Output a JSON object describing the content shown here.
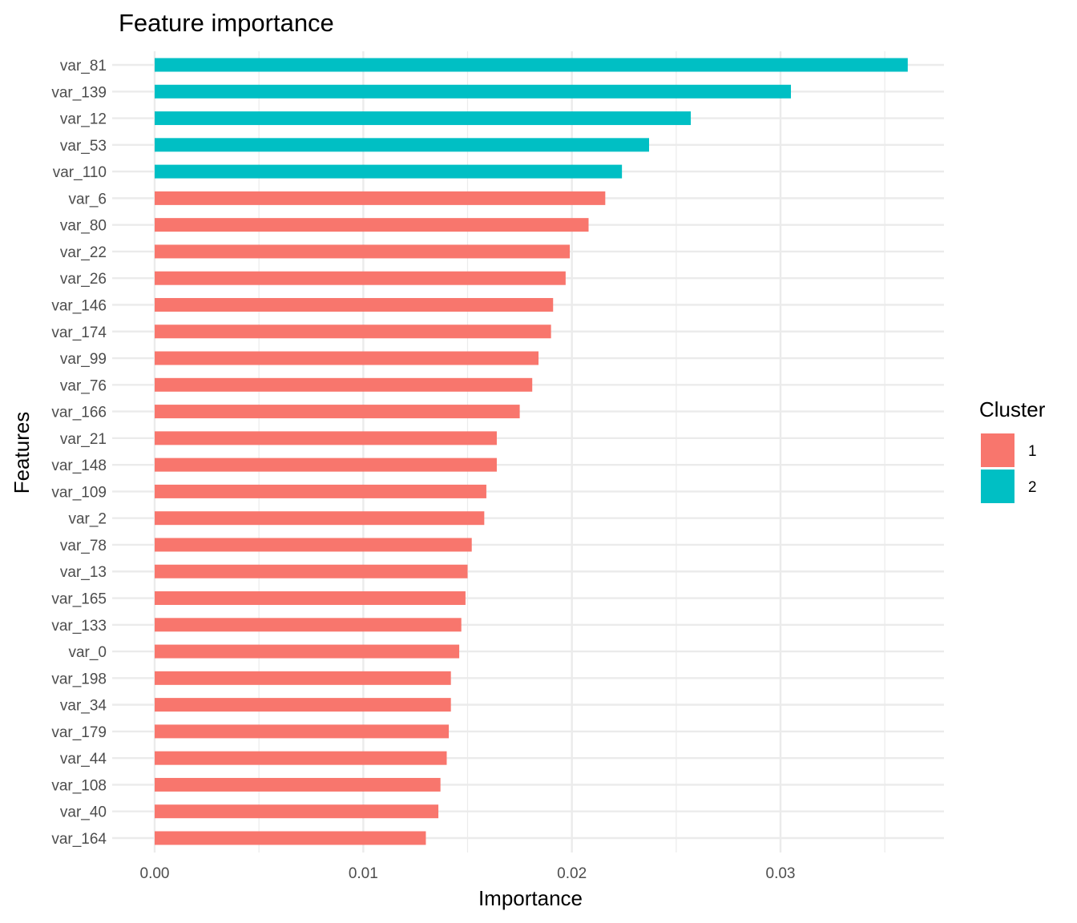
{
  "chart_data": {
    "type": "bar",
    "orientation": "horizontal",
    "title": "Feature importance",
    "xlabel": "Importance",
    "ylabel": "Features",
    "xlim": [
      0,
      0.037
    ],
    "x_ticks": [
      "0.00",
      "0.01",
      "0.02",
      "0.03"
    ],
    "x_tick_values": [
      0,
      0.01,
      0.02,
      0.03
    ],
    "grid": true,
    "legend": {
      "title": "Cluster",
      "position": "right",
      "entries": [
        {
          "label": "1",
          "color": "#F8766D"
        },
        {
          "label": "2",
          "color": "#00BFC4"
        }
      ]
    },
    "categories": [
      "var_81",
      "var_139",
      "var_12",
      "var_53",
      "var_110",
      "var_6",
      "var_80",
      "var_22",
      "var_26",
      "var_146",
      "var_174",
      "var_99",
      "var_76",
      "var_166",
      "var_21",
      "var_148",
      "var_109",
      "var_2",
      "var_78",
      "var_13",
      "var_165",
      "var_133",
      "var_0",
      "var_198",
      "var_34",
      "var_179",
      "var_44",
      "var_108",
      "var_40",
      "var_164"
    ],
    "values": [
      0.0361,
      0.0305,
      0.0257,
      0.0237,
      0.0224,
      0.0216,
      0.0208,
      0.0199,
      0.0197,
      0.0191,
      0.019,
      0.0184,
      0.0181,
      0.0175,
      0.0164,
      0.0164,
      0.0159,
      0.0158,
      0.0152,
      0.015,
      0.0149,
      0.0147,
      0.0146,
      0.0142,
      0.0142,
      0.0141,
      0.014,
      0.0137,
      0.0136,
      0.013
    ],
    "cluster": [
      "2",
      "2",
      "2",
      "2",
      "2",
      "1",
      "1",
      "1",
      "1",
      "1",
      "1",
      "1",
      "1",
      "1",
      "1",
      "1",
      "1",
      "1",
      "1",
      "1",
      "1",
      "1",
      "1",
      "1",
      "1",
      "1",
      "1",
      "1",
      "1",
      "1"
    ]
  }
}
